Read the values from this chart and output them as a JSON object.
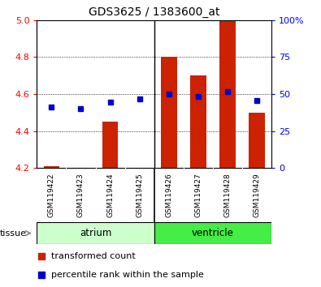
{
  "title": "GDS3625 / 1383600_at",
  "samples": [
    "GSM119422",
    "GSM119423",
    "GSM119424",
    "GSM119425",
    "GSM119426",
    "GSM119427",
    "GSM119428",
    "GSM119429"
  ],
  "transformed_count": [
    4.21,
    4.2,
    4.45,
    4.2,
    4.8,
    4.7,
    5.0,
    4.5
  ],
  "percentile_y": [
    4.53,
    4.52,
    4.555,
    4.575,
    4.6,
    4.585,
    4.615,
    4.565
  ],
  "bar_color": "#cc2200",
  "dot_color": "#0000cc",
  "ylim": [
    4.2,
    5.0
  ],
  "yticks_left": [
    4.2,
    4.4,
    4.6,
    4.8,
    5.0
  ],
  "yticks_right": [
    0,
    25,
    50,
    75,
    100
  ],
  "ytick_labels_right": [
    "0",
    "25",
    "50",
    "75",
    "100%"
  ],
  "background_color": "#ffffff",
  "atrium_color": "#ccffcc",
  "ventricle_color": "#44ee44",
  "sample_bg": "#cccccc",
  "legend_bar_label": "transformed count",
  "legend_dot_label": "percentile rank within the sample"
}
